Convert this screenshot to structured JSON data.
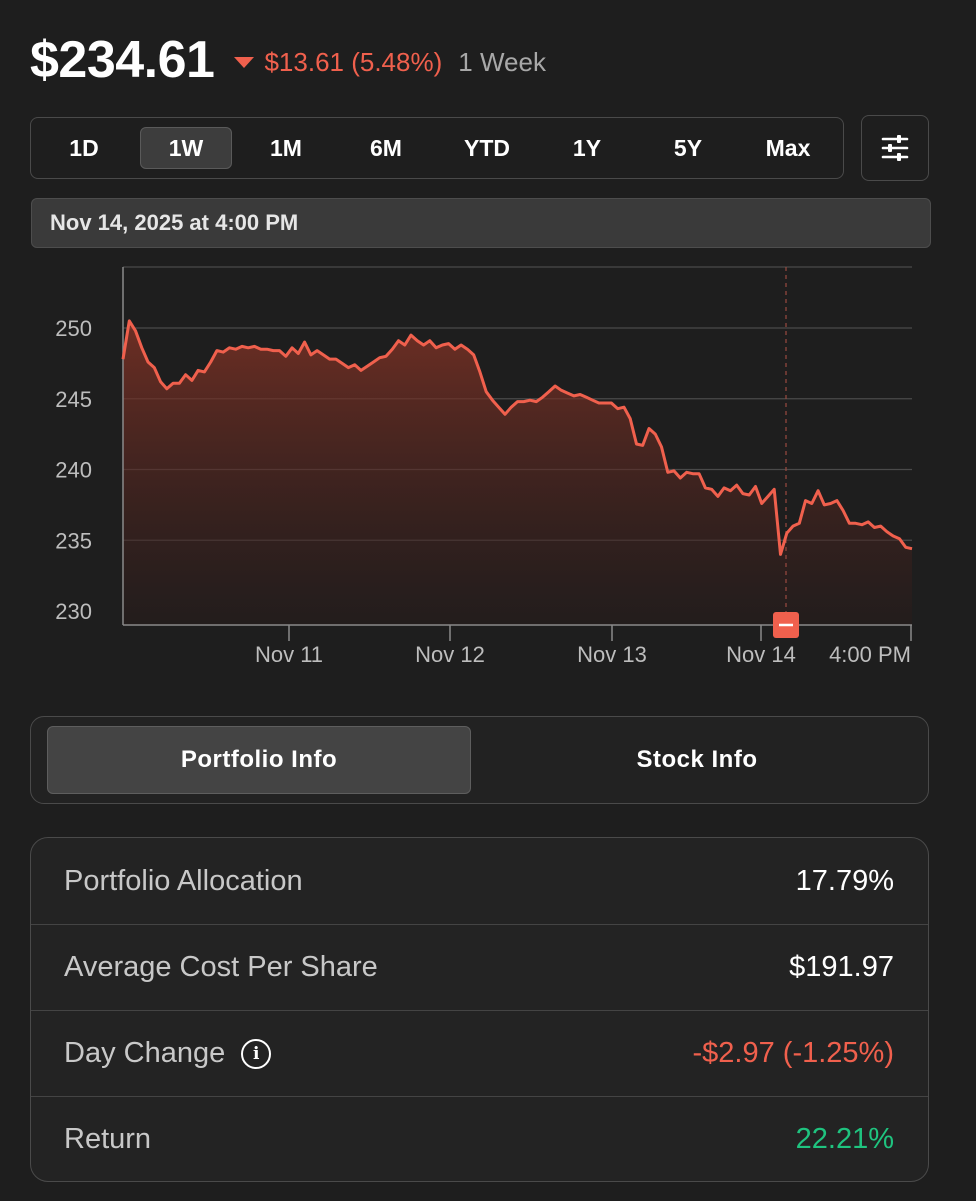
{
  "header": {
    "price": "$234.61",
    "change": "$13.61 (5.48%)",
    "period": "1 Week",
    "change_color": "#f0604d",
    "direction_icon": "triangle-down-icon"
  },
  "range_selector": {
    "options": [
      "1D",
      "1W",
      "1M",
      "6M",
      "YTD",
      "1Y",
      "5Y",
      "Max"
    ],
    "selected": "1W",
    "settings_icon": "sliders-icon"
  },
  "selected_date": "Nov 14, 2025 at 4:00 PM",
  "chart_data": {
    "type": "area",
    "title": "",
    "xlabel": "",
    "ylabel": "",
    "ylim": [
      230,
      252
    ],
    "yticks": [
      230,
      235,
      240,
      245,
      250
    ],
    "xticks": [
      "Nov 11",
      "Nov 12",
      "Nov 13",
      "Nov 14",
      "4:00 PM"
    ],
    "grid": "horizontal",
    "line_color": "#f0604d",
    "series": [
      {
        "values": [
          247.8,
          250.5,
          249.8,
          248.6,
          247.6,
          247.2,
          246.2,
          245.7,
          246.1,
          246.1,
          246.7,
          246.3,
          247.0,
          246.9,
          247.6,
          248.4,
          248.3,
          248.6,
          248.5,
          248.7,
          248.6,
          248.7,
          248.5,
          248.5,
          248.4,
          248.4,
          248.0,
          248.6,
          248.2,
          249.0,
          248.1,
          248.4,
          248.1,
          247.8,
          247.8,
          247.5,
          247.2,
          247.4,
          247.0,
          247.3,
          247.6,
          247.9,
          248.0,
          248.5,
          249.1,
          248.8,
          249.5,
          249.1,
          248.8,
          249.1,
          248.6,
          248.8,
          248.9,
          248.5,
          248.8,
          248.5,
          248.1,
          246.9,
          245.5,
          244.9,
          244.4,
          243.9,
          244.4,
          244.8,
          244.8,
          244.9,
          244.8,
          245.1,
          245.5,
          245.9,
          245.6,
          245.4,
          245.2,
          245.3,
          245.1,
          244.9,
          244.7,
          244.7,
          244.7,
          244.3,
          244.4,
          243.6,
          241.8,
          241.7,
          242.9,
          242.5,
          241.6,
          239.8,
          239.9,
          239.4,
          239.8,
          239.7,
          239.7,
          238.7,
          238.6,
          238.1,
          238.7,
          238.5,
          238.9,
          238.3,
          238.2,
          238.8,
          237.6,
          238.1,
          238.6,
          234.0,
          235.5,
          236.0,
          236.2,
          237.8,
          237.6,
          238.5,
          237.5,
          237.6,
          237.8,
          237.1,
          236.2,
          236.2,
          236.1,
          236.3,
          235.9,
          236.0,
          235.6,
          235.3,
          235.1,
          234.5,
          234.4
        ],
        "selected_point": {
          "x": "Nov 14, 2025 at 4:00 PM",
          "y": 234.61
        }
      }
    ]
  },
  "tabs": {
    "items": [
      "Portfolio Info",
      "Stock Info"
    ],
    "selected": "Portfolio Info"
  },
  "portfolio_info": {
    "rows": [
      {
        "label": "Portfolio Allocation",
        "value": "17.79%"
      },
      {
        "label": "Average Cost Per Share",
        "value": "$191.97"
      },
      {
        "label": "Day Change",
        "value": "-$2.97 (-1.25%)",
        "has_info_icon": true,
        "value_color": "#f0604d"
      },
      {
        "label": "Return",
        "value": "22.21%",
        "value_color": "#1fc37f"
      }
    ]
  }
}
